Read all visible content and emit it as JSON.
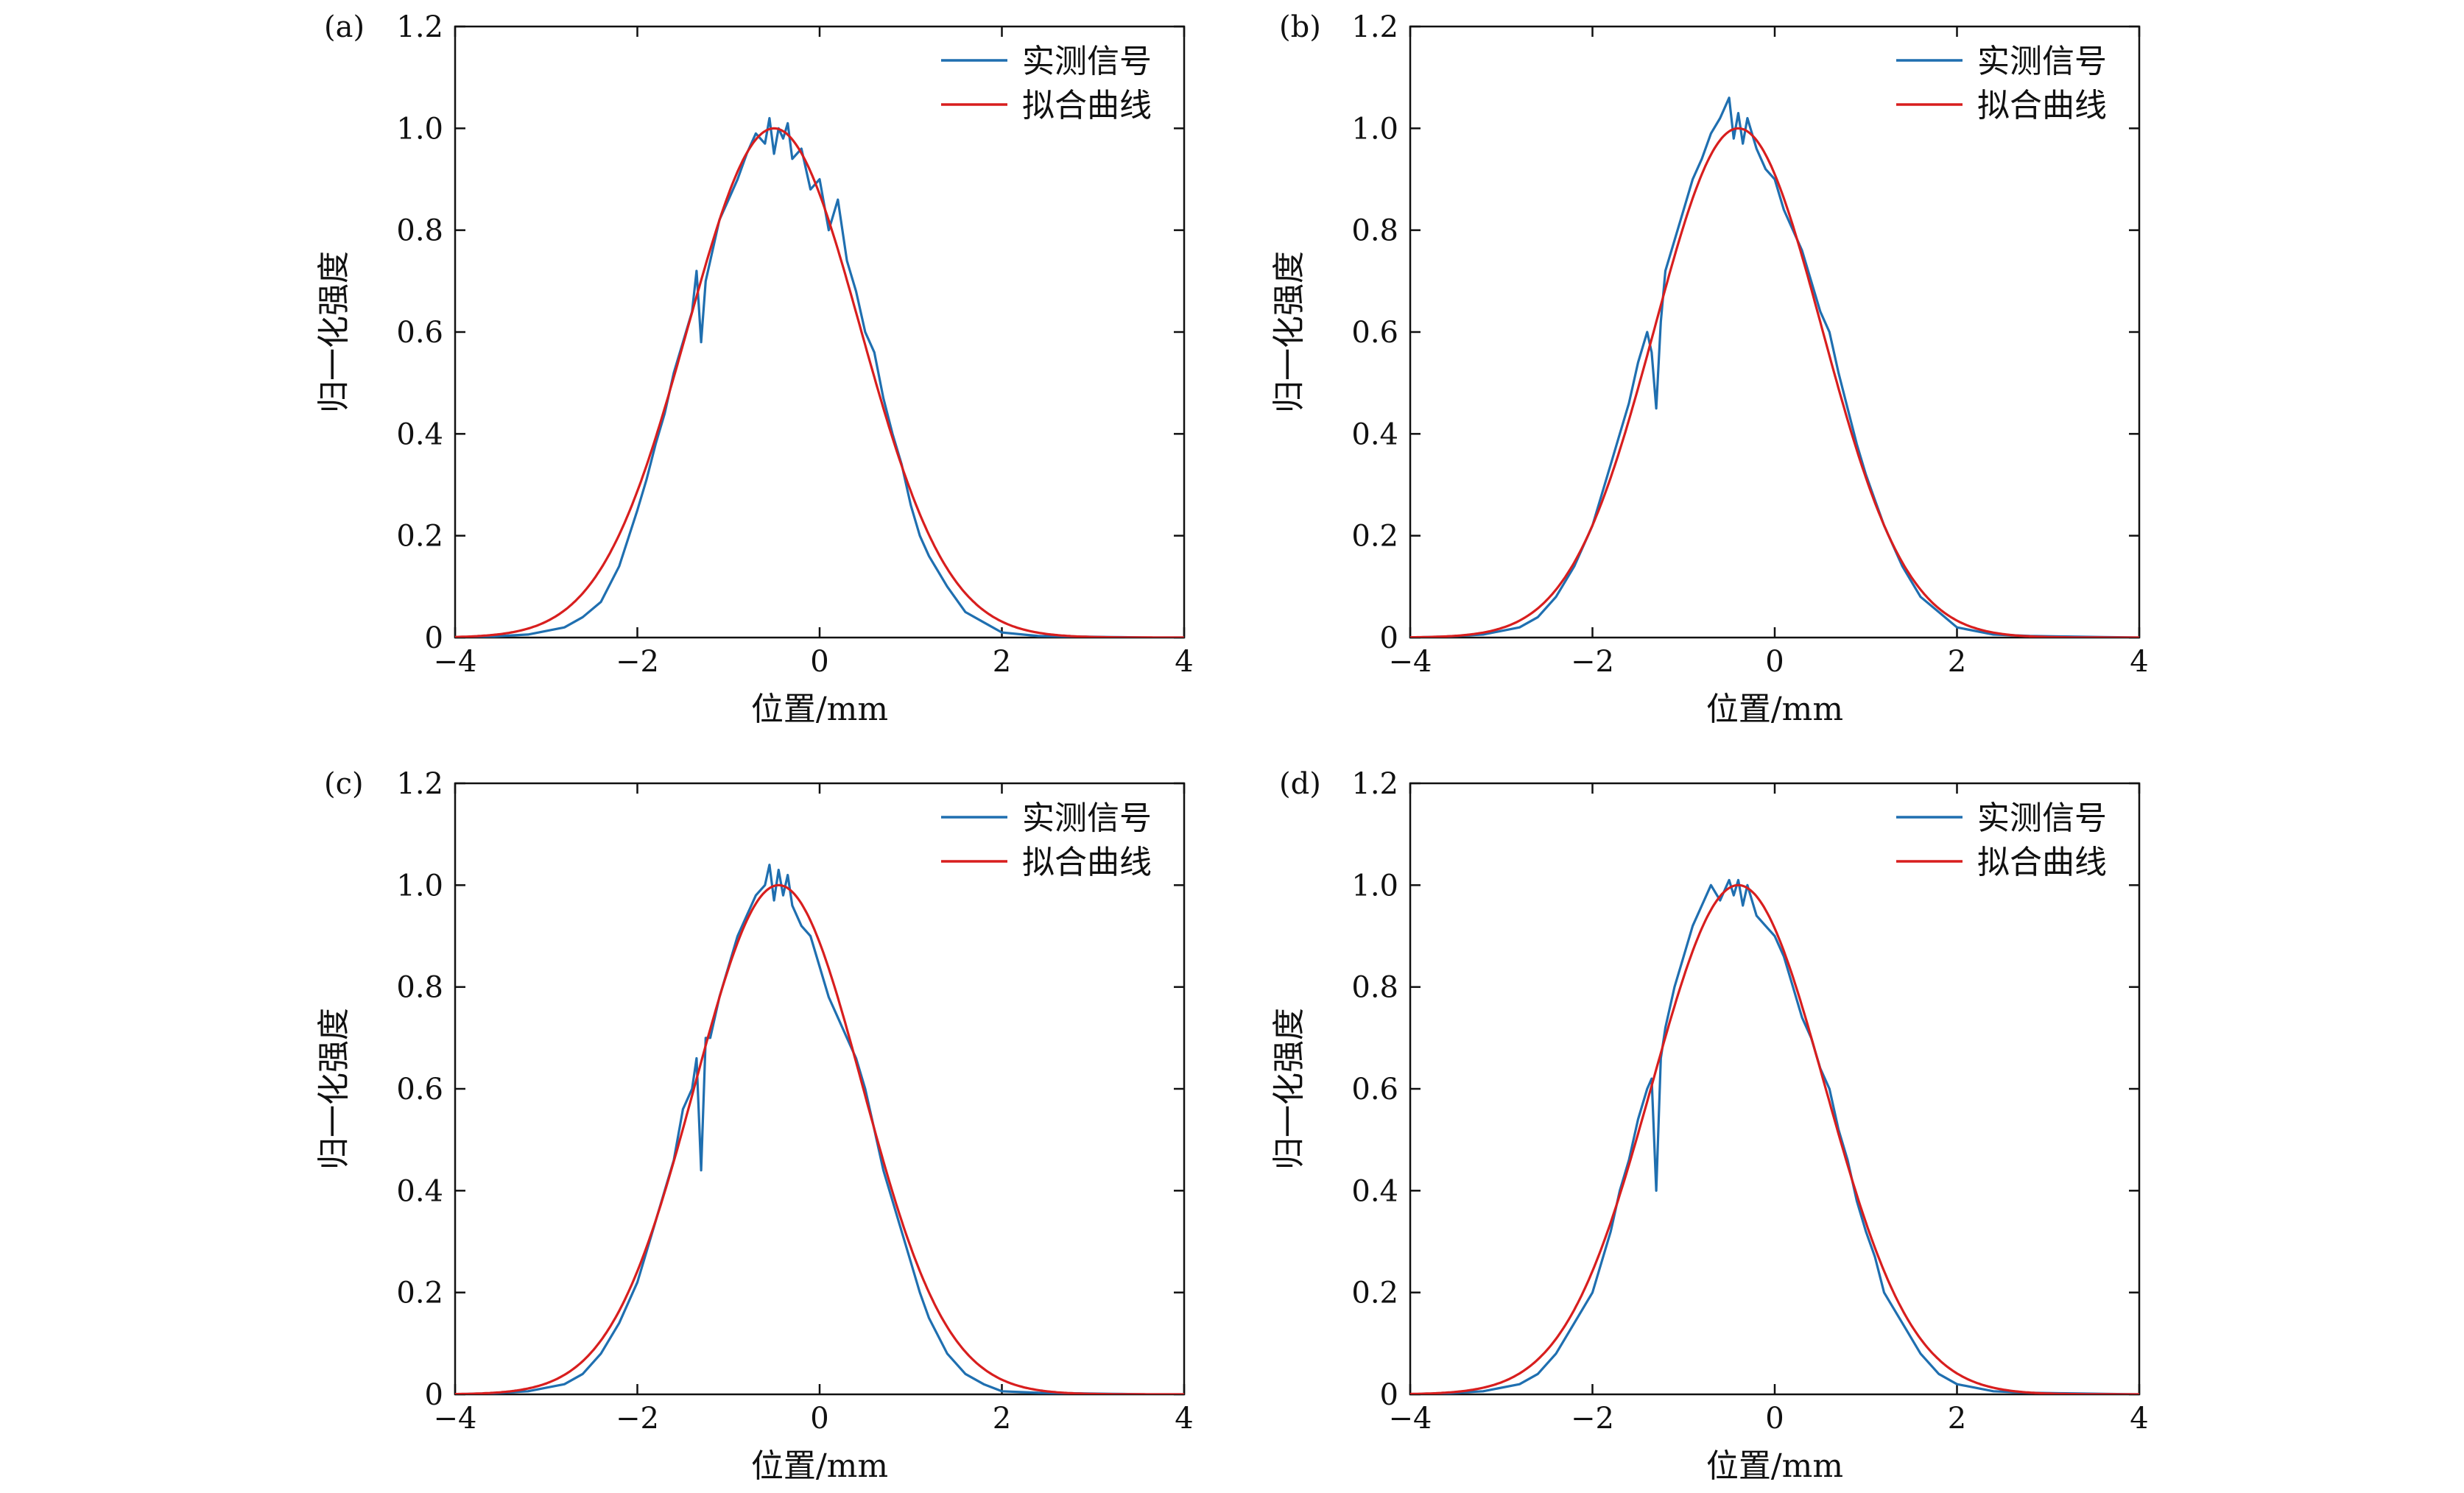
{
  "colors": {
    "measured": "#1f6fb0",
    "fit": "#d81e1e",
    "axis": "#111111"
  },
  "chart_data": [
    {
      "type": "line",
      "panel_label": "(a)",
      "xlabel": "位置/mm",
      "ylabel": "归一化强度",
      "xlim": [
        -4,
        4
      ],
      "ylim": [
        0,
        1.2
      ],
      "xticks": [
        -4,
        -2,
        0,
        2,
        4
      ],
      "xtick_labels": [
        "−4",
        "−2",
        "0",
        "2",
        "4"
      ],
      "yticks": [
        0,
        0.2,
        0.4,
        0.6,
        0.8,
        1.0,
        1.2
      ],
      "ytick_labels": [
        "0",
        "0.2",
        "0.4",
        "0.6",
        "0.8",
        "1.0",
        "1.2"
      ],
      "legend": {
        "position": "top-right"
      },
      "series": [
        {
          "name": "实测信号",
          "x": [
            -4.0,
            -3.6,
            -3.2,
            -2.8,
            -2.6,
            -2.4,
            -2.2,
            -2.0,
            -1.9,
            -1.8,
            -1.7,
            -1.6,
            -1.5,
            -1.4,
            -1.35,
            -1.3,
            -1.25,
            -1.2,
            -1.1,
            -1.0,
            -0.9,
            -0.8,
            -0.7,
            -0.6,
            -0.55,
            -0.5,
            -0.45,
            -0.4,
            -0.35,
            -0.3,
            -0.2,
            -0.1,
            0.0,
            0.1,
            0.2,
            0.3,
            0.4,
            0.5,
            0.6,
            0.7,
            0.8,
            0.9,
            1.0,
            1.1,
            1.2,
            1.4,
            1.6,
            1.8,
            2.0,
            2.4,
            2.8,
            3.2,
            3.6,
            4.0
          ],
          "y": [
            0.0,
            0.002,
            0.006,
            0.02,
            0.04,
            0.07,
            0.14,
            0.25,
            0.31,
            0.38,
            0.44,
            0.52,
            0.58,
            0.64,
            0.72,
            0.58,
            0.7,
            0.74,
            0.82,
            0.86,
            0.9,
            0.95,
            0.99,
            0.97,
            1.02,
            0.95,
            1.0,
            0.98,
            1.01,
            0.94,
            0.96,
            0.88,
            0.9,
            0.8,
            0.86,
            0.74,
            0.68,
            0.6,
            0.56,
            0.47,
            0.4,
            0.34,
            0.26,
            0.2,
            0.16,
            0.1,
            0.05,
            0.03,
            0.01,
            0.003,
            0.002,
            0.001,
            0.0,
            0.0
          ]
        },
        {
          "name": "拟合曲线",
          "fit": {
            "mu": -0.5,
            "sigma": 0.95,
            "amp": 1.0
          }
        }
      ]
    },
    {
      "type": "line",
      "panel_label": "(b)",
      "xlabel": "位置/mm",
      "ylabel": "归一化强度",
      "xlim": [
        -4,
        4
      ],
      "ylim": [
        0,
        1.2
      ],
      "xticks": [
        -4,
        -2,
        0,
        2,
        4
      ],
      "xtick_labels": [
        "−4",
        "−2",
        "0",
        "2",
        "4"
      ],
      "yticks": [
        0,
        0.2,
        0.4,
        0.6,
        0.8,
        1.0,
        1.2
      ],
      "ytick_labels": [
        "0",
        "0.2",
        "0.4",
        "0.6",
        "0.8",
        "1.0",
        "1.2"
      ],
      "legend": {
        "position": "top-right"
      },
      "series": [
        {
          "name": "实测信号",
          "x": [
            -4.0,
            -3.6,
            -3.2,
            -2.8,
            -2.6,
            -2.4,
            -2.2,
            -2.0,
            -1.9,
            -1.8,
            -1.7,
            -1.6,
            -1.5,
            -1.4,
            -1.35,
            -1.3,
            -1.25,
            -1.2,
            -1.1,
            -1.0,
            -0.9,
            -0.8,
            -0.7,
            -0.6,
            -0.5,
            -0.45,
            -0.4,
            -0.35,
            -0.3,
            -0.2,
            -0.1,
            0.0,
            0.1,
            0.2,
            0.3,
            0.4,
            0.5,
            0.6,
            0.7,
            0.8,
            0.9,
            1.0,
            1.1,
            1.2,
            1.4,
            1.6,
            1.8,
            2.0,
            2.4,
            2.8,
            3.2,
            3.6,
            4.0
          ],
          "y": [
            0.0,
            0.002,
            0.006,
            0.02,
            0.04,
            0.08,
            0.14,
            0.22,
            0.28,
            0.34,
            0.4,
            0.46,
            0.54,
            0.6,
            0.56,
            0.45,
            0.62,
            0.72,
            0.78,
            0.84,
            0.9,
            0.94,
            0.99,
            1.02,
            1.06,
            0.98,
            1.03,
            0.97,
            1.02,
            0.96,
            0.92,
            0.9,
            0.84,
            0.8,
            0.76,
            0.7,
            0.64,
            0.6,
            0.52,
            0.45,
            0.38,
            0.32,
            0.27,
            0.22,
            0.14,
            0.08,
            0.05,
            0.02,
            0.006,
            0.003,
            0.002,
            0.001,
            0.0
          ]
        },
        {
          "name": "拟合曲线",
          "fit": {
            "mu": -0.4,
            "sigma": 0.92,
            "amp": 1.0
          }
        }
      ]
    },
    {
      "type": "line",
      "panel_label": "(c)",
      "xlabel": "位置/mm",
      "ylabel": "归一化强度",
      "xlim": [
        -4,
        4
      ],
      "ylim": [
        0,
        1.2
      ],
      "xticks": [
        -4,
        -2,
        0,
        2,
        4
      ],
      "xtick_labels": [
        "−4",
        "−2",
        "0",
        "2",
        "4"
      ],
      "yticks": [
        0,
        0.2,
        0.4,
        0.6,
        0.8,
        1.0,
        1.2
      ],
      "ytick_labels": [
        "0",
        "0.2",
        "0.4",
        "0.6",
        "0.8",
        "1.0",
        "1.2"
      ],
      "legend": {
        "position": "top-right"
      },
      "series": [
        {
          "name": "实测信号",
          "x": [
            -4.0,
            -3.6,
            -3.2,
            -2.8,
            -2.6,
            -2.4,
            -2.2,
            -2.0,
            -1.9,
            -1.8,
            -1.7,
            -1.6,
            -1.5,
            -1.4,
            -1.35,
            -1.3,
            -1.25,
            -1.2,
            -1.1,
            -1.0,
            -0.9,
            -0.8,
            -0.7,
            -0.6,
            -0.55,
            -0.5,
            -0.45,
            -0.4,
            -0.35,
            -0.3,
            -0.2,
            -0.1,
            0.0,
            0.1,
            0.2,
            0.3,
            0.4,
            0.5,
            0.6,
            0.7,
            0.8,
            0.9,
            1.0,
            1.1,
            1.2,
            1.4,
            1.6,
            1.8,
            2.0,
            2.4,
            2.8,
            3.2,
            3.6,
            4.0
          ],
          "y": [
            0.0,
            0.002,
            0.006,
            0.02,
            0.04,
            0.08,
            0.14,
            0.22,
            0.28,
            0.34,
            0.4,
            0.46,
            0.56,
            0.6,
            0.66,
            0.44,
            0.7,
            0.7,
            0.78,
            0.84,
            0.9,
            0.94,
            0.98,
            1.0,
            1.04,
            0.97,
            1.03,
            0.98,
            1.02,
            0.96,
            0.92,
            0.9,
            0.84,
            0.78,
            0.74,
            0.7,
            0.66,
            0.6,
            0.52,
            0.44,
            0.38,
            0.32,
            0.26,
            0.2,
            0.15,
            0.08,
            0.04,
            0.02,
            0.006,
            0.003,
            0.002,
            0.001,
            0.0,
            0.0
          ]
        },
        {
          "name": "拟合曲线",
          "fit": {
            "mu": -0.45,
            "sigma": 0.92,
            "amp": 1.0
          }
        }
      ]
    },
    {
      "type": "line",
      "panel_label": "(d)",
      "xlabel": "位置/mm",
      "ylabel": "归一化强度",
      "xlim": [
        -4,
        4
      ],
      "ylim": [
        0,
        1.2
      ],
      "xticks": [
        -4,
        -2,
        0,
        2,
        4
      ],
      "xtick_labels": [
        "−4",
        "−2",
        "0",
        "2",
        "4"
      ],
      "yticks": [
        0,
        0.2,
        0.4,
        0.6,
        0.8,
        1.0,
        1.2
      ],
      "ytick_labels": [
        "0",
        "0.2",
        "0.4",
        "0.6",
        "0.8",
        "1.0",
        "1.2"
      ],
      "legend": {
        "position": "top-right"
      },
      "series": [
        {
          "name": "实测信号",
          "x": [
            -4.0,
            -3.6,
            -3.2,
            -2.8,
            -2.6,
            -2.4,
            -2.2,
            -2.0,
            -1.9,
            -1.8,
            -1.7,
            -1.6,
            -1.5,
            -1.4,
            -1.35,
            -1.3,
            -1.25,
            -1.2,
            -1.1,
            -1.0,
            -0.9,
            -0.8,
            -0.7,
            -0.6,
            -0.5,
            -0.45,
            -0.4,
            -0.35,
            -0.3,
            -0.2,
            -0.1,
            0.0,
            0.1,
            0.2,
            0.3,
            0.4,
            0.5,
            0.6,
            0.7,
            0.8,
            0.9,
            1.0,
            1.1,
            1.2,
            1.4,
            1.6,
            1.8,
            2.0,
            2.4,
            2.8,
            3.2,
            3.6,
            4.0
          ],
          "y": [
            0.0,
            0.002,
            0.006,
            0.02,
            0.04,
            0.08,
            0.14,
            0.2,
            0.26,
            0.32,
            0.4,
            0.46,
            0.54,
            0.6,
            0.62,
            0.4,
            0.66,
            0.72,
            0.8,
            0.86,
            0.92,
            0.96,
            1.0,
            0.97,
            1.01,
            0.98,
            1.01,
            0.96,
            1.0,
            0.94,
            0.92,
            0.9,
            0.86,
            0.8,
            0.74,
            0.7,
            0.64,
            0.6,
            0.52,
            0.46,
            0.38,
            0.32,
            0.27,
            0.2,
            0.14,
            0.08,
            0.04,
            0.02,
            0.006,
            0.003,
            0.002,
            0.001,
            0.0
          ]
        },
        {
          "name": "拟合曲线",
          "fit": {
            "mu": -0.4,
            "sigma": 0.95,
            "amp": 1.0
          }
        }
      ]
    }
  ]
}
